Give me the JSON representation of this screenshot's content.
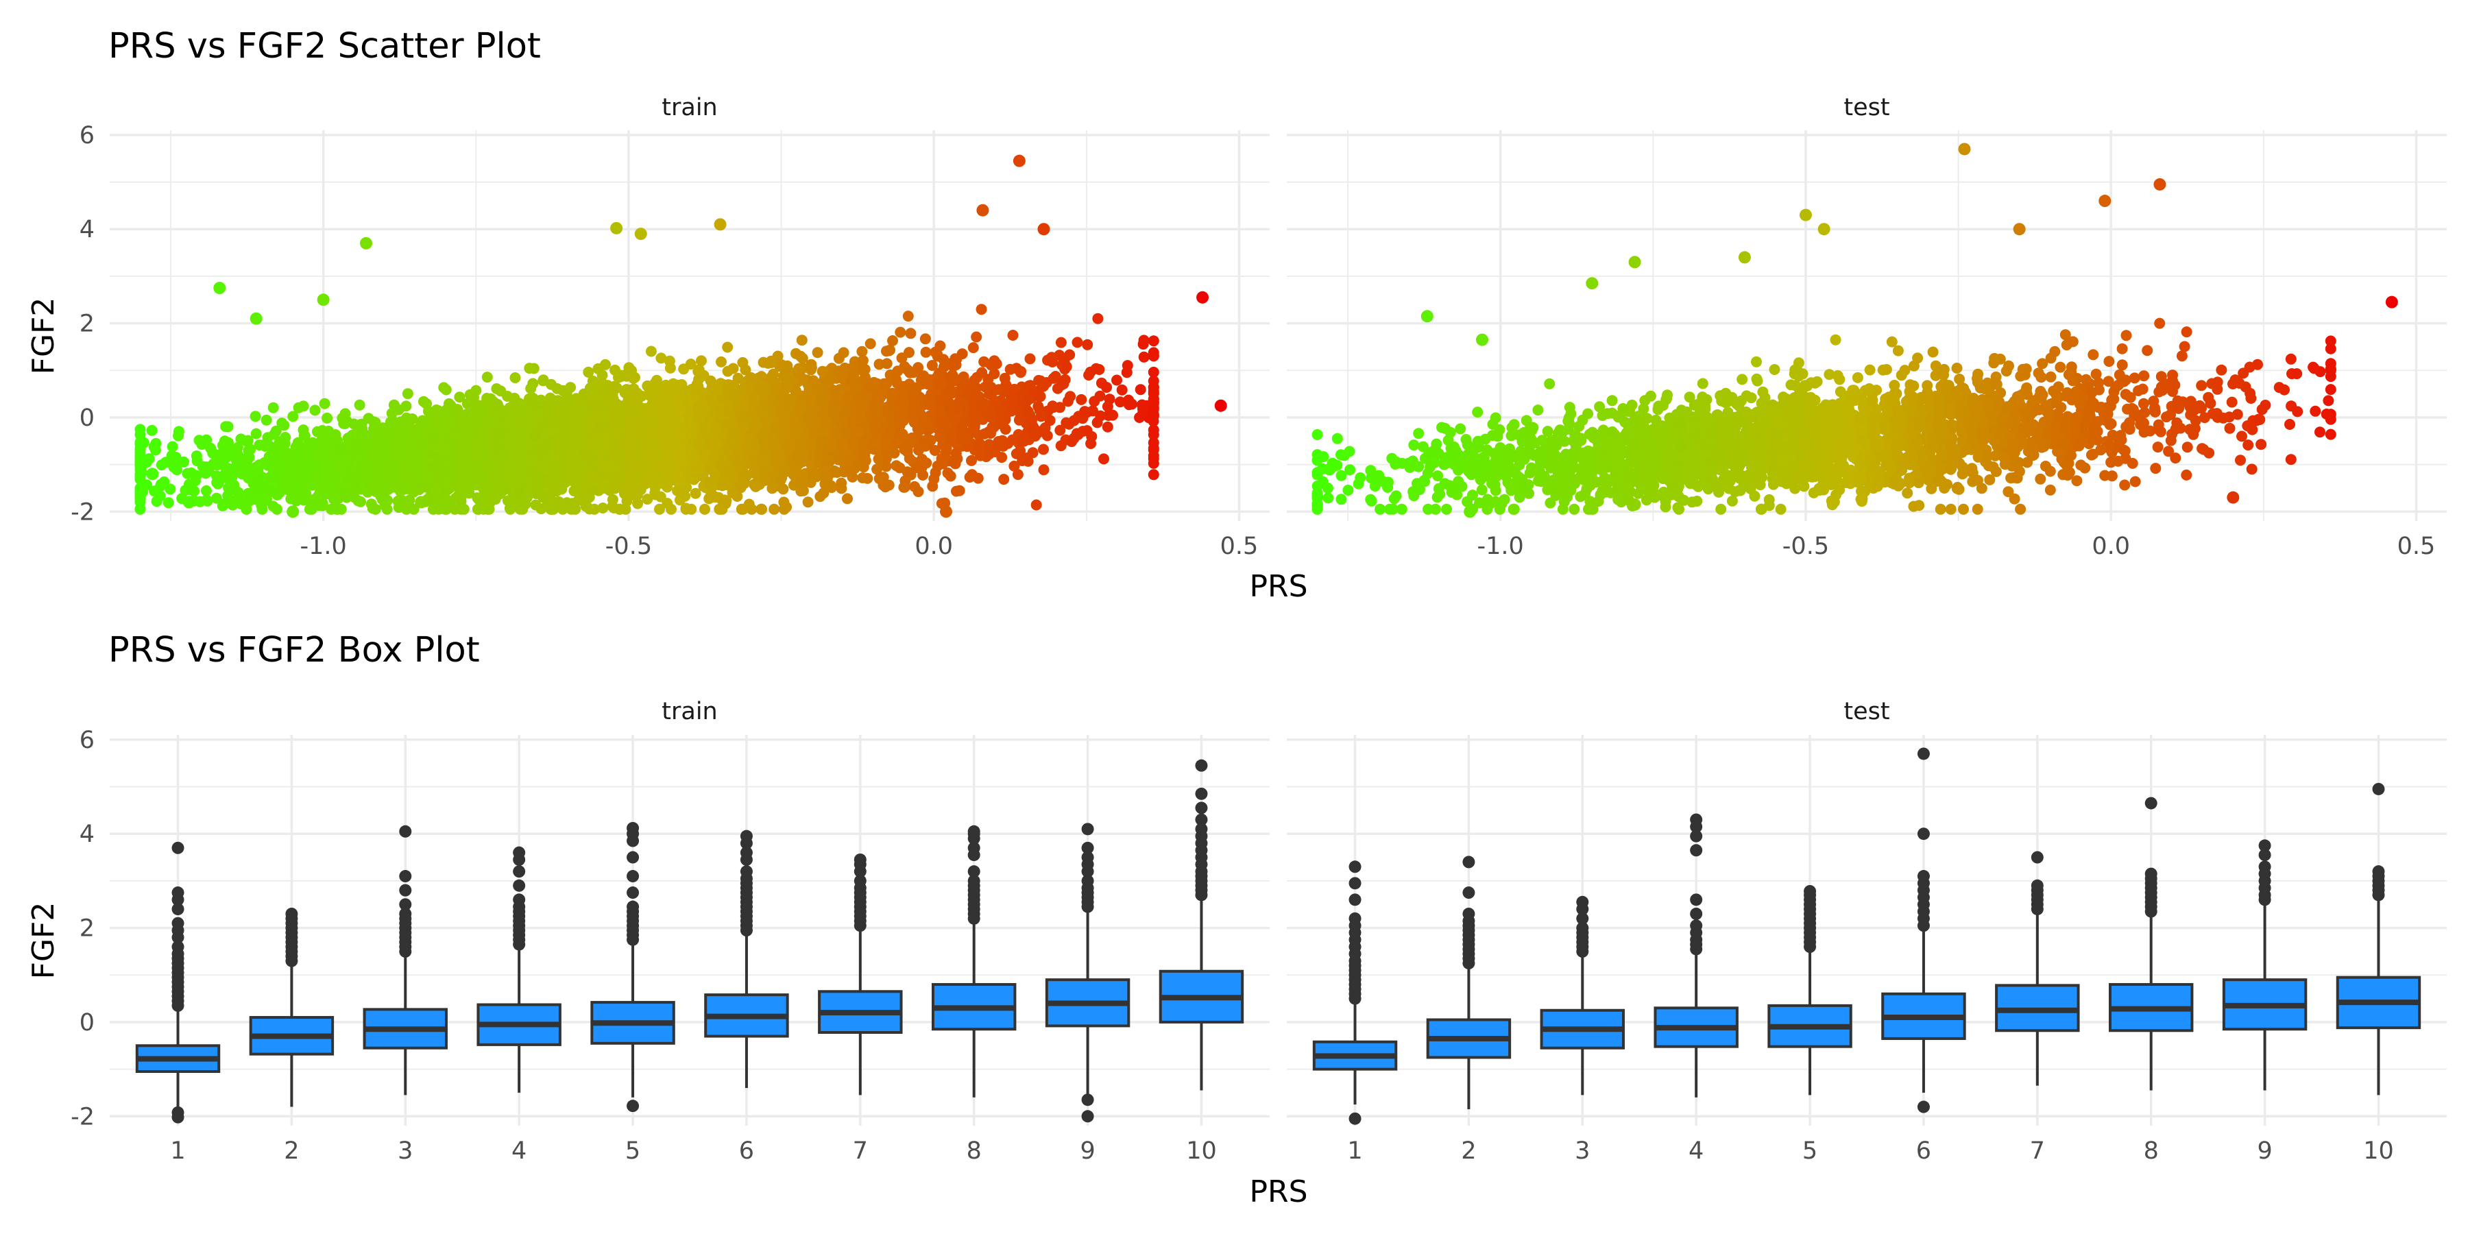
{
  "chart_data": [
    {
      "type": "scatter",
      "title": "PRS vs FGF2 Scatter Plot",
      "xlabel": "PRS",
      "ylabel": "FGF2",
      "facets": [
        "train",
        "test"
      ],
      "xlim": [
        -1.35,
        0.55
      ],
      "ylim": [
        -2.2,
        6.1
      ],
      "x_ticks": [
        -1.0,
        -0.5,
        0.0,
        0.5
      ],
      "x_tick_labels": [
        "-1.0",
        "-0.5",
        "0.0",
        "0.5"
      ],
      "y_ticks": [
        -2,
        0,
        2,
        4,
        6
      ],
      "y_tick_labels": [
        "-2",
        "0",
        "2",
        "4",
        "6"
      ],
      "color_scale": {
        "low": "#44ff00",
        "mid": "#c2b400",
        "high": "#ee0000",
        "mapped_to": "PRS"
      },
      "grid": true,
      "legend": "none",
      "series": [
        {
          "name": "train",
          "n_points_approx": 20000,
          "x_range": [
            -1.3,
            0.47
          ],
          "trend": {
            "slope": 1.0,
            "intercept": 0.0,
            "noise_sd": 0.6
          },
          "highlighted_points": [
            {
              "x": -1.17,
              "y": 2.75
            },
            {
              "x": -0.93,
              "y": 3.7
            },
            {
              "x": -1.0,
              "y": 2.5
            },
            {
              "x": -1.11,
              "y": 2.1
            },
            {
              "x": -0.35,
              "y": 4.1
            },
            {
              "x": -0.52,
              "y": 4.02
            },
            {
              "x": -0.48,
              "y": 3.9
            },
            {
              "x": 0.14,
              "y": 5.45
            },
            {
              "x": 0.08,
              "y": 4.4
            },
            {
              "x": 0.18,
              "y": 4.0
            },
            {
              "x": 0.44,
              "y": 2.55
            },
            {
              "x": 0.47,
              "y": 0.25
            },
            {
              "x": -1.28,
              "y": -1.2
            },
            {
              "x": -1.05,
              "y": -2.0
            },
            {
              "x": 0.02,
              "y": -2.0
            },
            {
              "x": -0.84,
              "y": -1.8
            },
            {
              "x": -1.22,
              "y": -1.8
            }
          ]
        },
        {
          "name": "test",
          "n_points_approx": 8000,
          "x_range": [
            -1.3,
            0.46
          ],
          "trend": {
            "slope": 1.0,
            "intercept": 0.0,
            "noise_sd": 0.6
          },
          "highlighted_points": [
            {
              "x": -0.24,
              "y": 5.7
            },
            {
              "x": 0.08,
              "y": 4.95
            },
            {
              "x": -0.01,
              "y": 4.6
            },
            {
              "x": -0.5,
              "y": 4.3
            },
            {
              "x": -0.47,
              "y": 4.0
            },
            {
              "x": -0.15,
              "y": 4.0
            },
            {
              "x": -0.78,
              "y": 3.3
            },
            {
              "x": -0.6,
              "y": 3.4
            },
            {
              "x": -0.85,
              "y": 2.85
            },
            {
              "x": 0.46,
              "y": 2.45
            },
            {
              "x": -1.12,
              "y": 2.15
            },
            {
              "x": -1.03,
              "y": 1.65
            },
            {
              "x": -1.28,
              "y": -1.1
            },
            {
              "x": -1.05,
              "y": -2.0
            },
            {
              "x": -0.78,
              "y": -1.85
            },
            {
              "x": 0.2,
              "y": -1.7
            }
          ]
        }
      ]
    },
    {
      "type": "box",
      "title": "PRS vs FGF2 Box Plot",
      "xlabel": "PRS",
      "ylabel": "FGF2",
      "facets": [
        "train",
        "test"
      ],
      "categories": [
        "1",
        "2",
        "3",
        "4",
        "5",
        "6",
        "7",
        "8",
        "9",
        "10"
      ],
      "ylim": [
        -2.2,
        6.1
      ],
      "y_ticks": [
        -2,
        0,
        2,
        4,
        6
      ],
      "y_tick_labels": [
        "-2",
        "0",
        "2",
        "4",
        "6"
      ],
      "fill_color": "#1e90ff",
      "outline_color": "#333333",
      "grid": true,
      "series": [
        {
          "name": "train",
          "boxes": [
            {
              "q1": -1.05,
              "median": -0.78,
              "q3": -0.5,
              "whisker_low": -1.85,
              "whisker_high": 0.28,
              "outliers": [
                0.35,
                0.45,
                0.55,
                0.65,
                0.75,
                0.85,
                0.95,
                1.05,
                1.15,
                1.25,
                1.35,
                1.45,
                1.6,
                1.8,
                1.95,
                2.1,
                2.4,
                2.6,
                2.75,
                3.7,
                -1.92,
                -2.02
              ]
            },
            {
              "q1": -0.68,
              "median": -0.3,
              "q3": 0.1,
              "whisker_low": -1.8,
              "whisker_high": 1.2,
              "outliers": [
                1.3,
                1.4,
                1.5,
                1.6,
                1.7,
                1.8,
                1.9,
                2.0,
                2.1,
                2.2,
                2.3
              ]
            },
            {
              "q1": -0.55,
              "median": -0.15,
              "q3": 0.27,
              "whisker_low": -1.55,
              "whisker_high": 1.45,
              "outliers": [
                1.5,
                1.6,
                1.7,
                1.8,
                1.9,
                2.0,
                2.1,
                2.2,
                2.3,
                2.5,
                2.8,
                3.1,
                4.05
              ]
            },
            {
              "q1": -0.48,
              "median": -0.05,
              "q3": 0.37,
              "whisker_low": -1.5,
              "whisker_high": 1.6,
              "outliers": [
                1.65,
                1.75,
                1.85,
                1.95,
                2.05,
                2.15,
                2.25,
                2.35,
                2.45,
                2.6,
                2.9,
                3.2,
                3.45,
                3.6
              ]
            },
            {
              "q1": -0.45,
              "median": -0.02,
              "q3": 0.42,
              "whisker_low": -1.6,
              "whisker_high": 1.7,
              "outliers": [
                1.75,
                1.85,
                1.95,
                2.05,
                2.15,
                2.25,
                2.35,
                2.45,
                2.75,
                3.1,
                3.5,
                3.85,
                4.0,
                4.12,
                -1.78
              ]
            },
            {
              "q1": -0.3,
              "median": 0.12,
              "q3": 0.58,
              "whisker_low": -1.4,
              "whisker_high": 1.9,
              "outliers": [
                1.95,
                2.05,
                2.15,
                2.25,
                2.35,
                2.45,
                2.55,
                2.65,
                2.75,
                2.85,
                2.95,
                3.05,
                3.2,
                3.45,
                3.6,
                3.8,
                3.95
              ]
            },
            {
              "q1": -0.22,
              "median": 0.2,
              "q3": 0.65,
              "whisker_low": -1.55,
              "whisker_high": 2.0,
              "outliers": [
                2.05,
                2.15,
                2.25,
                2.35,
                2.45,
                2.55,
                2.65,
                2.75,
                2.85,
                3.0,
                3.2,
                3.35,
                3.45
              ]
            },
            {
              "q1": -0.15,
              "median": 0.3,
              "q3": 0.8,
              "whisker_low": -1.6,
              "whisker_high": 2.15,
              "outliers": [
                2.2,
                2.3,
                2.4,
                2.5,
                2.6,
                2.7,
                2.8,
                2.9,
                3.0,
                3.2,
                3.55,
                3.7,
                3.9,
                4.0,
                4.05
              ]
            },
            {
              "q1": -0.08,
              "median": 0.4,
              "q3": 0.9,
              "whisker_low": -1.55,
              "whisker_high": 2.4,
              "outliers": [
                2.45,
                2.55,
                2.65,
                2.75,
                2.85,
                3.0,
                3.2,
                3.35,
                3.5,
                3.7,
                4.1,
                -1.65,
                -2.0
              ]
            },
            {
              "q1": 0.0,
              "median": 0.52,
              "q3": 1.08,
              "whisker_low": -1.45,
              "whisker_high": 2.65,
              "outliers": [
                2.7,
                2.8,
                2.9,
                3.0,
                3.1,
                3.2,
                3.35,
                3.5,
                3.65,
                3.8,
                3.95,
                4.1,
                4.3,
                4.55,
                4.85,
                5.45
              ]
            }
          ]
        },
        {
          "name": "test",
          "boxes": [
            {
              "q1": -1.0,
              "median": -0.72,
              "q3": -0.42,
              "whisker_low": -1.75,
              "whisker_high": 0.4,
              "outliers": [
                0.5,
                0.6,
                0.7,
                0.8,
                0.9,
                1.0,
                1.1,
                1.2,
                1.3,
                1.45,
                1.6,
                1.75,
                1.9,
                2.05,
                2.2,
                2.6,
                2.95,
                3.3,
                -2.05
              ]
            },
            {
              "q1": -0.75,
              "median": -0.35,
              "q3": 0.05,
              "whisker_low": -1.85,
              "whisker_high": 1.15,
              "outliers": [
                1.25,
                1.35,
                1.45,
                1.55,
                1.65,
                1.75,
                1.85,
                1.95,
                2.05,
                2.15,
                2.3,
                2.75,
                3.4
              ]
            },
            {
              "q1": -0.55,
              "median": -0.15,
              "q3": 0.25,
              "whisker_low": -1.55,
              "whisker_high": 1.4,
              "outliers": [
                1.5,
                1.6,
                1.7,
                1.8,
                1.9,
                2.0,
                2.2,
                2.4,
                2.55
              ]
            },
            {
              "q1": -0.52,
              "median": -0.12,
              "q3": 0.3,
              "whisker_low": -1.6,
              "whisker_high": 1.45,
              "outliers": [
                1.55,
                1.65,
                1.75,
                1.9,
                2.05,
                2.3,
                2.6,
                3.65,
                3.95,
                4.15,
                4.3
              ]
            },
            {
              "q1": -0.52,
              "median": -0.1,
              "q3": 0.35,
              "whisker_low": -1.55,
              "whisker_high": 1.5,
              "outliers": [
                1.6,
                1.7,
                1.8,
                1.9,
                2.0,
                2.1,
                2.2,
                2.3,
                2.4,
                2.5,
                2.6,
                2.7,
                2.78
              ]
            },
            {
              "q1": -0.35,
              "median": 0.1,
              "q3": 0.6,
              "whisker_low": -1.5,
              "whisker_high": 1.95,
              "outliers": [
                2.05,
                2.2,
                2.35,
                2.5,
                2.65,
                2.8,
                2.95,
                3.1,
                4.0,
                5.7,
                -1.8
              ]
            },
            {
              "q1": -0.18,
              "median": 0.25,
              "q3": 0.78,
              "whisker_low": -1.35,
              "whisker_high": 2.3,
              "outliers": [
                2.4,
                2.5,
                2.6,
                2.7,
                2.8,
                2.9,
                3.5
              ]
            },
            {
              "q1": -0.18,
              "median": 0.28,
              "q3": 0.8,
              "whisker_low": -1.45,
              "whisker_high": 2.25,
              "outliers": [
                2.35,
                2.45,
                2.55,
                2.65,
                2.75,
                2.85,
                2.95,
                3.05,
                3.15,
                4.65
              ]
            },
            {
              "q1": -0.15,
              "median": 0.35,
              "q3": 0.9,
              "whisker_low": -1.45,
              "whisker_high": 2.5,
              "outliers": [
                2.6,
                2.7,
                2.85,
                3.0,
                3.15,
                3.3,
                3.55,
                3.75
              ]
            },
            {
              "q1": -0.12,
              "median": 0.42,
              "q3": 0.95,
              "whisker_low": -1.55,
              "whisker_high": 2.6,
              "outliers": [
                2.7,
                2.8,
                2.9,
                3.0,
                3.1,
                3.2,
                4.95
              ]
            }
          ]
        }
      ]
    }
  ]
}
